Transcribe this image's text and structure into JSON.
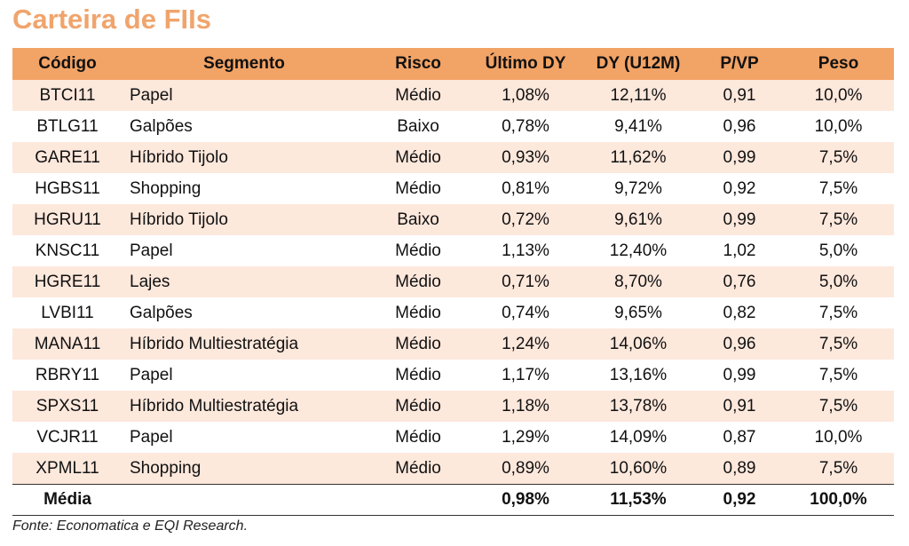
{
  "title": "Carteira de FIIs",
  "headers": {
    "codigo": "Código",
    "segmento": "Segmento",
    "risco": "Risco",
    "ultimo_dy": "Último DY",
    "dy_u12m": "DY (U12M)",
    "pvp": "P/VP",
    "peso": "Peso"
  },
  "rows": [
    {
      "codigo": "BTCI11",
      "segmento": "Papel",
      "risco": "Médio",
      "ultimo_dy": "1,08%",
      "dy_u12m": "12,11%",
      "pvp": "0,91",
      "peso": "10,0%"
    },
    {
      "codigo": "BTLG11",
      "segmento": "Galpões",
      "risco": "Baixo",
      "ultimo_dy": "0,78%",
      "dy_u12m": "9,41%",
      "pvp": "0,96",
      "peso": "10,0%"
    },
    {
      "codigo": "GARE11",
      "segmento": "Híbrido Tijolo",
      "risco": "Médio",
      "ultimo_dy": "0,93%",
      "dy_u12m": "11,62%",
      "pvp": "0,99",
      "peso": "7,5%"
    },
    {
      "codigo": "HGBS11",
      "segmento": "Shopping",
      "risco": "Médio",
      "ultimo_dy": "0,81%",
      "dy_u12m": "9,72%",
      "pvp": "0,92",
      "peso": "7,5%"
    },
    {
      "codigo": "HGRU11",
      "segmento": "Híbrido Tijolo",
      "risco": "Baixo",
      "ultimo_dy": "0,72%",
      "dy_u12m": "9,61%",
      "pvp": "0,99",
      "peso": "7,5%"
    },
    {
      "codigo": "KNSC11",
      "segmento": "Papel",
      "risco": "Médio",
      "ultimo_dy": "1,13%",
      "dy_u12m": "12,40%",
      "pvp": "1,02",
      "peso": "5,0%"
    },
    {
      "codigo": "HGRE11",
      "segmento": "Lajes",
      "risco": "Médio",
      "ultimo_dy": "0,71%",
      "dy_u12m": "8,70%",
      "pvp": "0,76",
      "peso": "5,0%"
    },
    {
      "codigo": "LVBI11",
      "segmento": "Galpões",
      "risco": "Médio",
      "ultimo_dy": "0,74%",
      "dy_u12m": "9,65%",
      "pvp": "0,82",
      "peso": "7,5%"
    },
    {
      "codigo": "MANA11",
      "segmento": "Híbrido Multiestratégia",
      "risco": "Médio",
      "ultimo_dy": "1,24%",
      "dy_u12m": "14,06%",
      "pvp": "0,96",
      "peso": "7,5%"
    },
    {
      "codigo": "RBRY11",
      "segmento": "Papel",
      "risco": "Médio",
      "ultimo_dy": "1,17%",
      "dy_u12m": "13,16%",
      "pvp": "0,99",
      "peso": "7,5%"
    },
    {
      "codigo": "SPXS11",
      "segmento": "Híbrido Multiestratégia",
      "risco": "Médio",
      "ultimo_dy": "1,18%",
      "dy_u12m": "13,78%",
      "pvp": "0,91",
      "peso": "7,5%"
    },
    {
      "codigo": "VCJR11",
      "segmento": "Papel",
      "risco": "Médio",
      "ultimo_dy": "1,29%",
      "dy_u12m": "14,09%",
      "pvp": "0,87",
      "peso": "10,0%"
    },
    {
      "codigo": "XPML11",
      "segmento": "Shopping",
      "risco": "Médio",
      "ultimo_dy": "0,89%",
      "dy_u12m": "10,60%",
      "pvp": "0,89",
      "peso": "7,5%"
    }
  ],
  "footer": {
    "label": "Média",
    "ultimo_dy": "0,98%",
    "dy_u12m": "11,53%",
    "pvp": "0,92",
    "peso": "100,0%"
  },
  "source": "Fonte: Economatica e EQI Research.",
  "colors": {
    "title": "#f0a46c",
    "header_bg": "#f2a366",
    "row_alt_bg": "#fde8dc"
  }
}
